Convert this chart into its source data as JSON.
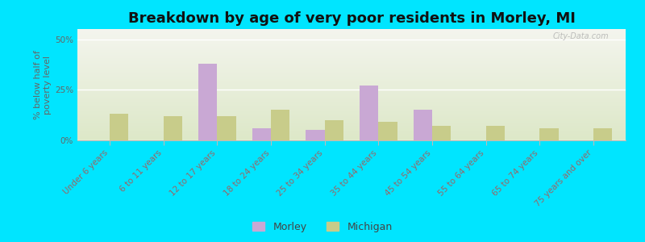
{
  "title": "Breakdown by age of very poor residents in Morley, MI",
  "ylabel": "% below half of\npoverty level",
  "categories": [
    "Under 6 years",
    "6 to 11 years",
    "12 to 17 years",
    "18 to 24 years",
    "25 to 34 years",
    "35 to 44 years",
    "45 to 54 years",
    "55 to 64 years",
    "65 to 74 years",
    "75 years and over"
  ],
  "morley_values": [
    0,
    0,
    38,
    6,
    5,
    27,
    15,
    0,
    0,
    0
  ],
  "michigan_values": [
    13,
    12,
    12,
    15,
    10,
    9,
    7,
    7,
    6,
    6
  ],
  "morley_color": "#c9a8d4",
  "michigan_color": "#c8cc8a",
  "background_color": "#00e5ff",
  "ylim": [
    0,
    55
  ],
  "yticks": [
    0,
    25,
    50
  ],
  "ytick_labels": [
    "0%",
    "25%",
    "50%"
  ],
  "bar_width": 0.35,
  "title_fontsize": 13,
  "axis_label_fontsize": 8,
  "tick_fontsize": 7.5,
  "legend_labels": [
    "Morley",
    "Michigan"
  ],
  "watermark": "City-Data.com",
  "xticklabel_color": "#996666",
  "yticklabel_color": "#666666",
  "ylabel_color": "#666666",
  "grid_color": "#ffffff",
  "plot_bg_top": "#f4f5ee",
  "plot_bg_bottom": "#dde8c8"
}
